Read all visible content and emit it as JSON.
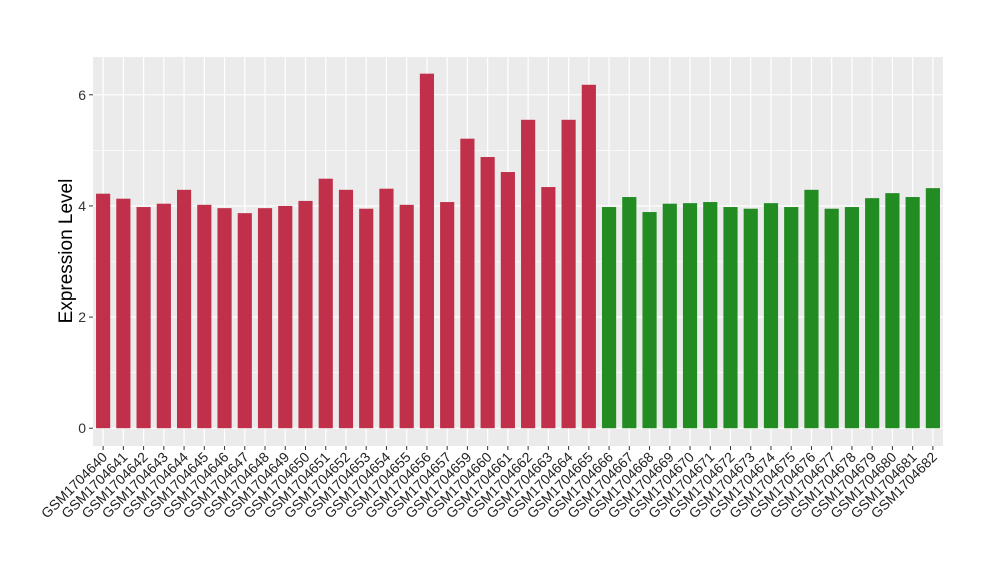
{
  "chart_data": {
    "type": "bar",
    "title": "",
    "xlabel": "",
    "ylabel": "Expression Level",
    "ylim": [
      -0.32,
      6.68
    ],
    "yticks": [
      0,
      2,
      4,
      6
    ],
    "grid": true,
    "colors": {
      "group1": "#C0304A",
      "group2": "#228B22",
      "panel": "#EBEBEB",
      "grid": "#FFFFFF"
    },
    "categories": [
      "GSM1704640",
      "GSM1704641",
      "GSM1704642",
      "GSM1704643",
      "GSM1704644",
      "GSM1704645",
      "GSM1704646",
      "GSM1704647",
      "GSM1704648",
      "GSM1704649",
      "GSM1704650",
      "GSM1704651",
      "GSM1704652",
      "GSM1704653",
      "GSM1704654",
      "GSM1704655",
      "GSM1704656",
      "GSM1704657",
      "GSM1704659",
      "GSM1704660",
      "GSM1704661",
      "GSM1704662",
      "GSM1704663",
      "GSM1704664",
      "GSM1704665",
      "GSM1704666",
      "GSM1704667",
      "GSM1704668",
      "GSM1704669",
      "GSM1704670",
      "GSM1704671",
      "GSM1704672",
      "GSM1704673",
      "GSM1704674",
      "GSM1704675",
      "GSM1704676",
      "GSM1704677",
      "GSM1704678",
      "GSM1704679",
      "GSM1704680",
      "GSM1704681",
      "GSM1704682"
    ],
    "values": [
      4.22,
      4.13,
      3.98,
      4.04,
      4.29,
      4.02,
      3.96,
      3.87,
      3.96,
      4.0,
      4.09,
      4.49,
      4.29,
      3.95,
      4.31,
      4.02,
      6.38,
      4.07,
      5.21,
      4.88,
      4.61,
      5.55,
      4.34,
      5.55,
      6.18,
      3.98,
      4.16,
      3.89,
      4.04,
      4.05,
      4.07,
      3.98,
      3.95,
      4.05,
      3.98,
      4.29,
      3.95,
      3.98,
      4.14,
      4.23,
      4.16,
      4.32
    ],
    "groups": [
      "group1",
      "group1",
      "group1",
      "group1",
      "group1",
      "group1",
      "group1",
      "group1",
      "group1",
      "group1",
      "group1",
      "group1",
      "group1",
      "group1",
      "group1",
      "group1",
      "group1",
      "group1",
      "group1",
      "group1",
      "group1",
      "group1",
      "group1",
      "group1",
      "group1",
      "group2",
      "group2",
      "group2",
      "group2",
      "group2",
      "group2",
      "group2",
      "group2",
      "group2",
      "group2",
      "group2",
      "group2",
      "group2",
      "group2",
      "group2",
      "group2",
      "group2"
    ]
  }
}
